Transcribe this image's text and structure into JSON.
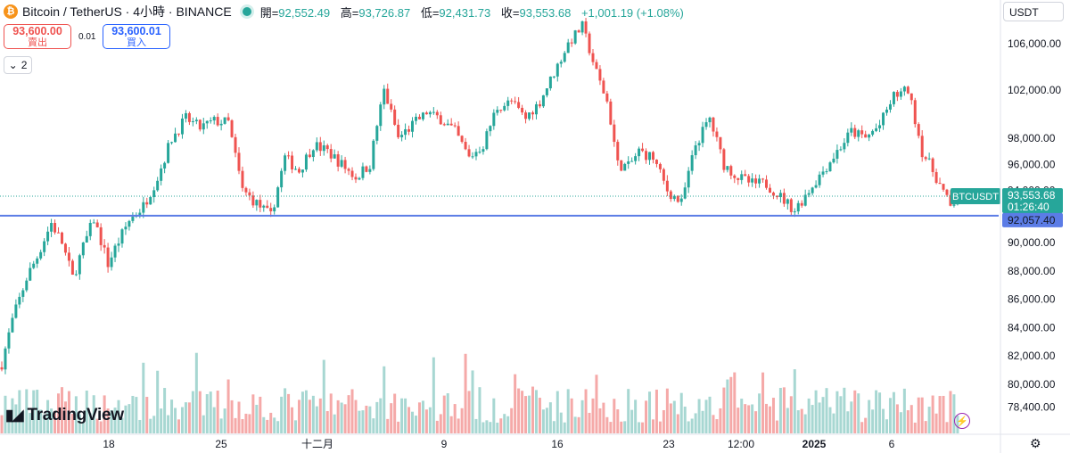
{
  "header": {
    "symbol": "Bitcoin / TetherUS · 4小時 · BINANCE",
    "coin_glyph": "₿",
    "ohlc": {
      "open_label": "開=",
      "open": "92,552.49",
      "high_label": "高=",
      "high": "93,726.87",
      "low_label": "低=",
      "low": "92,431.73",
      "close_label": "收=",
      "close": "93,553.68",
      "change": "+1,001.19 (+1.08%)"
    }
  },
  "trade": {
    "sell_price": "93,600.00",
    "sell_label": "賣出",
    "spread": "0.01",
    "buy_price": "93,600.01",
    "buy_label": "買入"
  },
  "indicator_count": "2",
  "currency": "USDT",
  "brand": "TradingView",
  "colors": {
    "up": "#26a69a",
    "down": "#ef5350",
    "hline": "#5b7ce6",
    "vol_up": "#a7d7d2",
    "vol_down": "#f5a9a8"
  },
  "chart_data": {
    "type": "candlestick",
    "symbol": "BTCUSDT",
    "yticks": [
      78400,
      80000,
      82000,
      84000,
      86000,
      88000,
      90000,
      92000,
      94000,
      96000,
      98000,
      102000,
      106000
    ],
    "ytick_labels": [
      "78,400.00",
      "80,000.00",
      "82,000.00",
      "84,000.00",
      "86,000.00",
      "88,000.00",
      "90,000.00",
      "92,000.00",
      "94,000.00",
      "96,000.00",
      "98,000.00",
      "102,000.00",
      "106,000.00"
    ],
    "xticks": [
      "18",
      "25",
      "十二月",
      "9",
      "16",
      "23",
      "12:00",
      "2025",
      "6"
    ],
    "last_price": "93,553.68",
    "countdown": "01:26:40",
    "hline_value": "92,057.40",
    "hline": 92057.4,
    "keypoints": [
      [
        0,
        81500
      ],
      [
        3,
        84500
      ],
      [
        7,
        87500
      ],
      [
        10,
        89000
      ],
      [
        14,
        91500
      ],
      [
        17,
        90000
      ],
      [
        20,
        87500
      ],
      [
        26,
        91800
      ],
      [
        30,
        88500
      ],
      [
        36,
        91700
      ],
      [
        40,
        92800
      ],
      [
        44,
        95000
      ],
      [
        48,
        98000
      ],
      [
        52,
        99500
      ],
      [
        56,
        98800
      ],
      [
        60,
        99300
      ],
      [
        64,
        99200
      ],
      [
        68,
        94000
      ],
      [
        72,
        93000
      ],
      [
        76,
        92000
      ],
      [
        80,
        96500
      ],
      [
        84,
        95500
      ],
      [
        88,
        97500
      ],
      [
        92,
        97000
      ],
      [
        96,
        96000
      ],
      [
        100,
        95000
      ],
      [
        104,
        96000
      ],
      [
        108,
        102000
      ],
      [
        112,
        98000
      ],
      [
        116,
        99000
      ],
      [
        120,
        100000
      ],
      [
        124,
        99500
      ],
      [
        128,
        98500
      ],
      [
        132,
        96500
      ],
      [
        136,
        97500
      ],
      [
        140,
        100500
      ],
      [
        144,
        101000
      ],
      [
        148,
        99500
      ],
      [
        152,
        101000
      ],
      [
        156,
        103500
      ],
      [
        160,
        106000
      ],
      [
        164,
        107500
      ],
      [
        168,
        103500
      ],
      [
        171,
        101000
      ],
      [
        174,
        96000
      ],
      [
        177,
        95800
      ],
      [
        180,
        97000
      ],
      [
        184,
        96500
      ],
      [
        188,
        94000
      ],
      [
        192,
        93000
      ],
      [
        196,
        97500
      ],
      [
        200,
        99500
      ],
      [
        204,
        96000
      ],
      [
        208,
        95000
      ],
      [
        212,
        94500
      ],
      [
        216,
        94500
      ],
      [
        220,
        93500
      ],
      [
        224,
        92500
      ],
      [
        228,
        94000
      ],
      [
        232,
        95500
      ],
      [
        236,
        97000
      ],
      [
        240,
        98500
      ],
      [
        244,
        98000
      ],
      [
        248,
        99000
      ],
      [
        252,
        101500
      ],
      [
        256,
        102000
      ],
      [
        260,
        97000
      ],
      [
        264,
        95000
      ],
      [
        268,
        92700
      ],
      [
        270,
        93500
      ]
    ]
  }
}
